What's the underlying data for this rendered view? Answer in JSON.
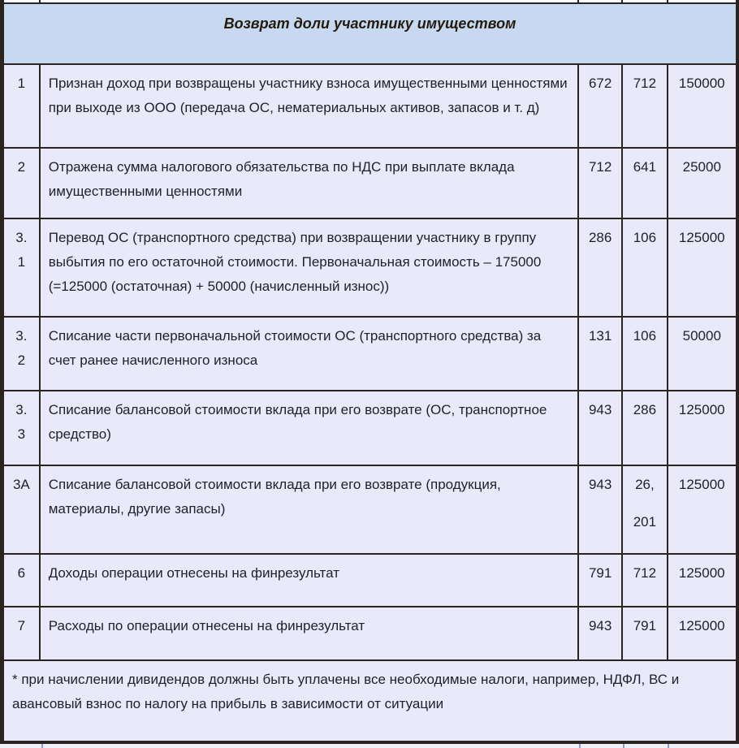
{
  "table": {
    "title": "Возврат доли участнику имуществом",
    "rows": [
      {
        "num": "1",
        "description": "Признан доход при возвращены участнику взноса имущественными ценностями при выходе из ООО (передача ОС, нематериальных активов, запасов и т. д)",
        "debit": "672",
        "credit": "712",
        "amount": "150000"
      },
      {
        "num": "2",
        "description": "Отражена сумма налогового обязательства по НДС при выплате вклада имущественными ценностями",
        "debit": "712",
        "credit": "641",
        "amount": "25000"
      },
      {
        "num": "3.1",
        "description": "Перевод ОС (транспортного средства) при возвращении участнику в группу выбытия по его остаточной стоимости. Первоначальная стоимость – 175000 (=125000 (остаточная) + 50000 (начисленный износ))",
        "debit": "286",
        "credit": "106",
        "amount": "125000"
      },
      {
        "num": "3.2",
        "description": "Списание части первоначальной стоимости ОС (транспортного средства) за счет ранее начисленного износа",
        "debit": "131",
        "credit": "106",
        "amount": "50000"
      },
      {
        "num": "3.3",
        "description": "Списание балансовой стоимости вклада при его возврате (ОС, транспортное средство)",
        "debit": "943",
        "credit": "286",
        "amount": "125000"
      },
      {
        "num": "3A",
        "description": "Списание балансовой стоимости вклада при его возврате (продукция, материалы, другие запасы)",
        "debit": "943",
        "credit": "26,\n201",
        "amount": "125000"
      },
      {
        "num": "6",
        "description": "Доходы операции отнесены на финрезультат",
        "debit": "791",
        "credit": "712",
        "amount": "125000"
      },
      {
        "num": "7",
        "description": "Расходы по операции отнесены на финрезультат",
        "debit": "943",
        "credit": "791",
        "amount": "125000"
      }
    ],
    "footnote": "* при начислении дивидендов должны быть уплачены все необходимые налоги, например, НДФЛ, ВС и авансовый взнос по налогу на прибыль в зависимости от ситуации"
  },
  "colors": {
    "header_bg": "#c6d9f1",
    "cell_bg": "#e9e9fa",
    "border": "#2b2320",
    "text": "#21212e"
  }
}
